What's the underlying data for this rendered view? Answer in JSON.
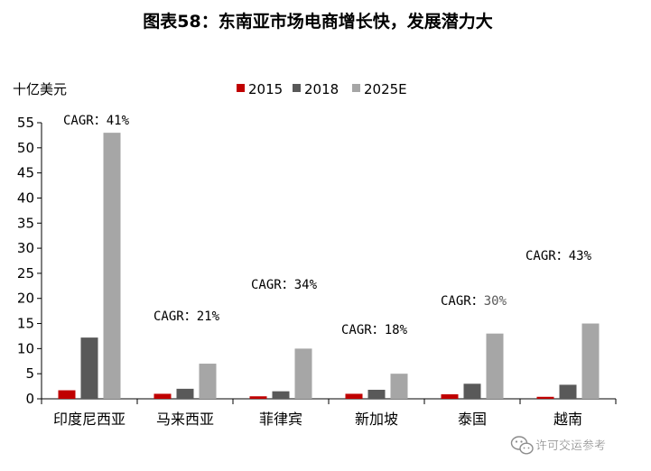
{
  "chart_data": {
    "type": "bar",
    "title": "图表58：东南亚市场电商增长快，发展潜力大",
    "ylabel": "十亿美元",
    "xlabel": "",
    "ylim": [
      0,
      55
    ],
    "yticks": [
      0,
      5,
      10,
      15,
      20,
      25,
      30,
      35,
      40,
      45,
      50,
      55
    ],
    "categories": [
      "印度尼西亚",
      "马来西亚",
      "菲律宾",
      "新加坡",
      "泰国",
      "越南"
    ],
    "series": [
      {
        "name": "2015",
        "color": "#c00000",
        "values": [
          1.7,
          1.0,
          0.5,
          1.0,
          0.9,
          0.4
        ]
      },
      {
        "name": "2018",
        "color": "#595959",
        "values": [
          12.2,
          2.0,
          1.5,
          1.8,
          3.0,
          2.8
        ]
      },
      {
        "name": "2025E",
        "color": "#a6a6a6",
        "values": [
          53,
          7.0,
          10.0,
          5.0,
          13.0,
          15.0
        ]
      }
    ],
    "annotations": [
      {
        "category": "印度尼西亚",
        "label": "CAGR",
        "sep": "：",
        "value": "41%"
      },
      {
        "category": "马来西亚",
        "label": "CAGR",
        "sep": "：",
        "value": "21%"
      },
      {
        "category": "菲律宾",
        "label": "CAGR",
        "sep": "：",
        "value": "34%"
      },
      {
        "category": "新加坡",
        "label": "CAGR",
        "sep": "：",
        "value": "18%"
      },
      {
        "category": "泰国",
        "label": "CAGR",
        "sep": "：",
        "value": "30%"
      },
      {
        "category": "越南",
        "label": "CAGR",
        "sep": "：",
        "value": "43%"
      }
    ],
    "legend_position": "top-center",
    "grid": false
  },
  "watermark": {
    "icon": "wechat-icon",
    "text": "许可交运参考"
  },
  "colors": {
    "axis": "#000000",
    "background": "#ffffff",
    "text": "#000000",
    "annotation_value_thailand": "#595959"
  }
}
